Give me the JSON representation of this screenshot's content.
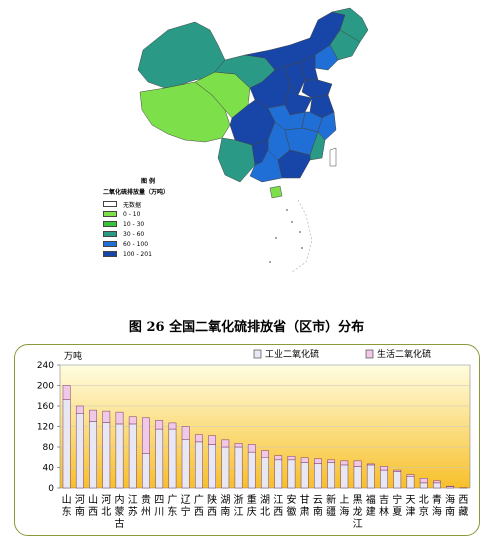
{
  "map": {
    "legend": {
      "title": "图 例",
      "subtitle": "二氧化硫排放量（万吨）",
      "items": [
        {
          "label": "无数据",
          "color": "#ffffff"
        },
        {
          "label": "0 - 10",
          "color": "#7de04a"
        },
        {
          "label": "10 - 30",
          "color": "#39c23a"
        },
        {
          "label": "30 - 60",
          "color": "#2a9a86"
        },
        {
          "label": "60 - 100",
          "color": "#1f6fd6"
        },
        {
          "label": "100 - 201",
          "color": "#1846a8"
        }
      ]
    }
  },
  "caption": "图 26   全国二氧化硫排放省（区市）分布",
  "chart_data": {
    "type": "bar",
    "stacked": true,
    "ylabel": "万吨",
    "ylim": [
      0,
      240
    ],
    "yticks": [
      0,
      40,
      80,
      120,
      160,
      200,
      240
    ],
    "grid": true,
    "legend_position": "top-right",
    "categories": [
      "山东",
      "河南",
      "山西",
      "河北",
      "内蒙古",
      "江苏",
      "贵州",
      "四川",
      "广东",
      "辽宁",
      "广西",
      "陕西",
      "湖南",
      "浙江",
      "重庆",
      "湖北",
      "江西",
      "安徽",
      "甘肃",
      "云南",
      "新疆",
      "上海",
      "黑龙江",
      "福建",
      "吉林",
      "宁夏",
      "天津",
      "北京",
      "青海",
      "海南",
      "西藏"
    ],
    "series": [
      {
        "name": "工业二氧化硫",
        "color": "#e8e8f4",
        "values": [
          173,
          145,
          130,
          128,
          125,
          125,
          67,
          115,
          115,
          95,
          90,
          85,
          80,
          80,
          70,
          60,
          55,
          55,
          50,
          48,
          50,
          45,
          42,
          45,
          35,
          32,
          22,
          10,
          10,
          3,
          0.3
        ]
      },
      {
        "name": "生活二氧化硫",
        "color": "#f0c8e8",
        "values": [
          27,
          15,
          22,
          22,
          23,
          14,
          70,
          17,
          12,
          25,
          14,
          17,
          14,
          7,
          15,
          13,
          8,
          7,
          9,
          9,
          5,
          8,
          11,
          2,
          7,
          3,
          4,
          9,
          4,
          0.5,
          0.2
        ]
      }
    ]
  }
}
